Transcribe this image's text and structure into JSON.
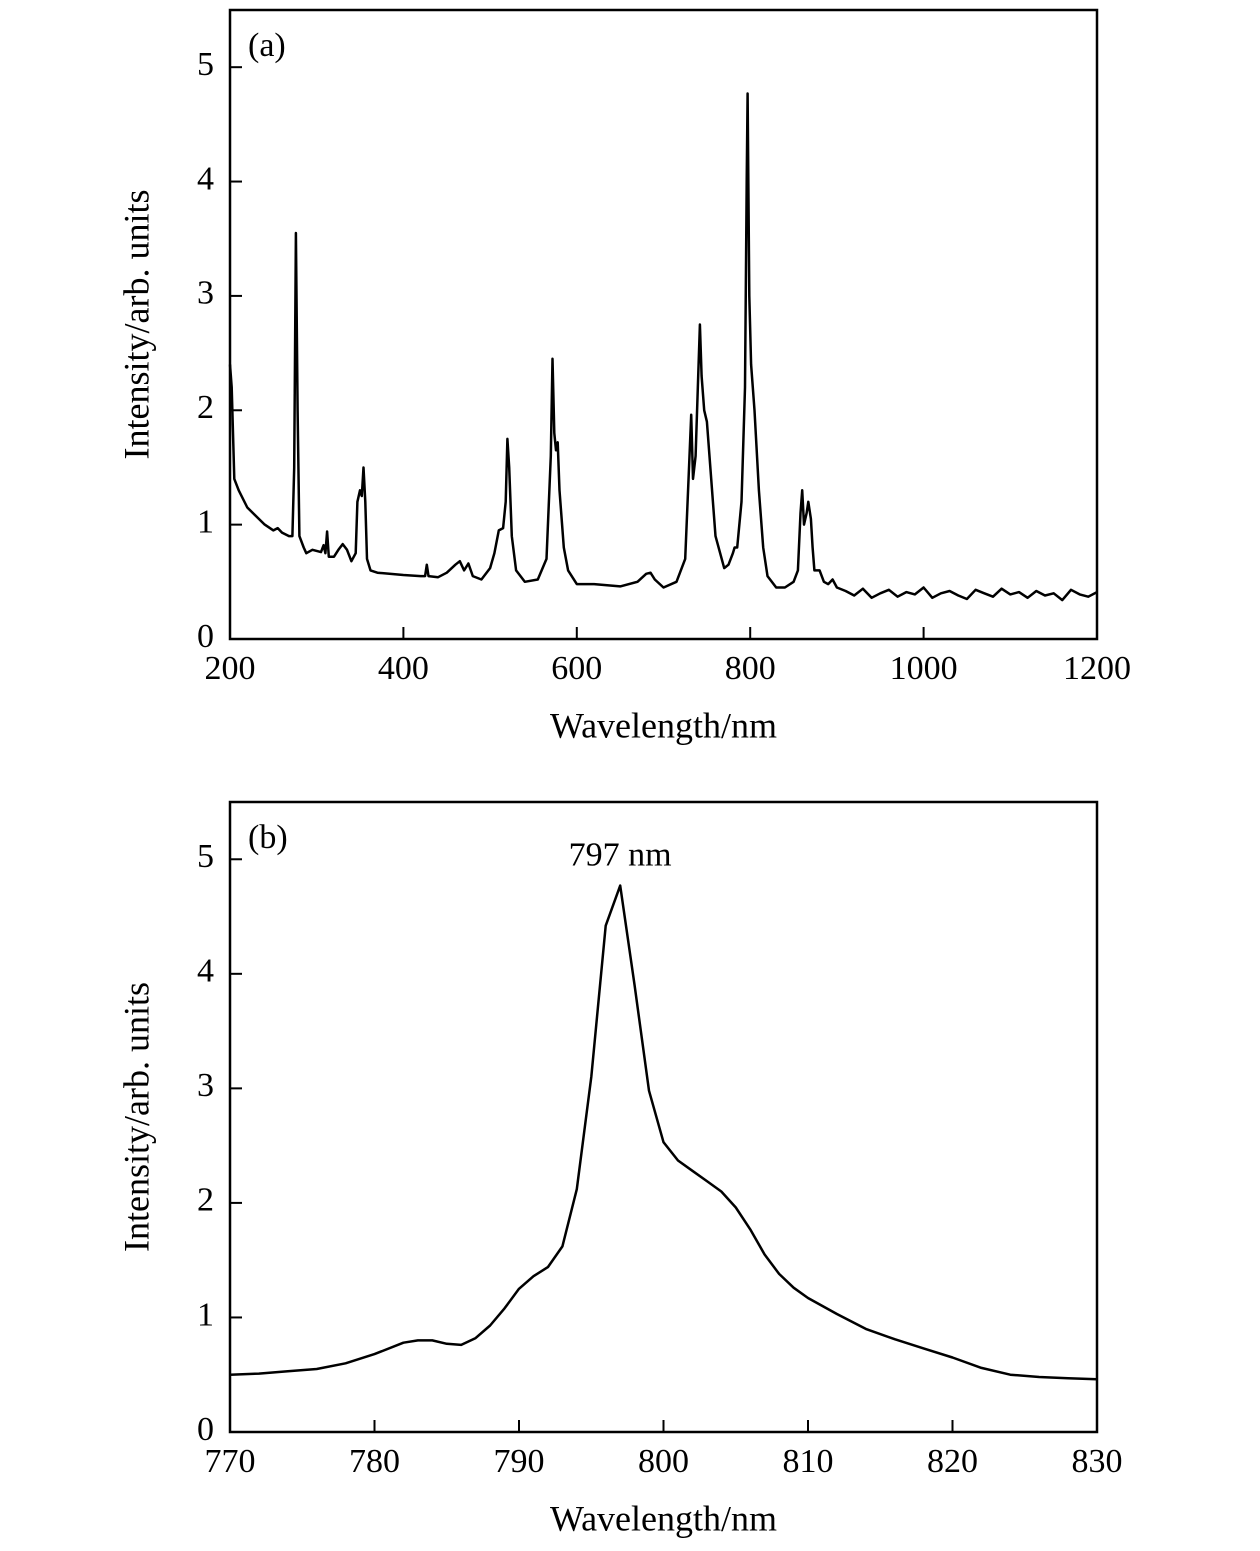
{
  "chart_data": [
    {
      "type": "line",
      "label": "(a)",
      "xlabel": "Wavelength/nm",
      "ylabel": "Intensity/arb. units",
      "x": [
        200,
        202,
        205,
        210,
        220,
        240,
        250,
        255,
        260,
        268,
        272,
        274,
        276,
        278,
        280,
        285,
        288,
        295,
        305,
        308,
        310,
        312,
        314,
        320,
        325,
        330,
        335,
        340,
        345,
        347,
        350,
        352,
        354,
        356,
        358,
        362,
        370,
        400,
        420,
        425,
        427,
        429,
        440,
        450,
        460,
        465,
        470,
        475,
        480,
        490,
        500,
        505,
        510,
        515,
        518,
        520,
        522,
        525,
        530,
        540,
        555,
        565,
        570,
        572,
        574,
        576,
        578,
        580,
        585,
        590,
        600,
        620,
        650,
        670,
        680,
        685,
        690,
        700,
        715,
        725,
        730,
        732,
        734,
        737,
        740,
        742,
        744,
        747,
        750,
        755,
        760,
        770,
        775,
        780,
        782,
        785,
        790,
        794,
        796,
        797,
        799,
        801,
        805,
        810,
        815,
        820,
        830,
        840,
        850,
        855,
        858,
        860,
        862,
        865,
        867,
        870,
        872,
        874,
        880,
        885,
        890,
        895,
        900,
        910,
        920,
        930,
        940,
        950,
        960,
        970,
        980,
        990,
        1000,
        1010,
        1020,
        1030,
        1040,
        1050,
        1060,
        1070,
        1080,
        1090,
        1100,
        1110,
        1120,
        1130,
        1140,
        1150,
        1160,
        1170,
        1180,
        1190,
        1200
      ],
      "values": [
        2.4,
        2.2,
        1.4,
        1.3,
        1.15,
        1.0,
        0.95,
        0.97,
        0.93,
        0.9,
        0.9,
        1.5,
        3.55,
        2.0,
        0.9,
        0.8,
        0.75,
        0.78,
        0.76,
        0.82,
        0.75,
        0.94,
        0.72,
        0.72,
        0.78,
        0.83,
        0.78,
        0.68,
        0.75,
        1.2,
        1.3,
        1.25,
        1.5,
        1.2,
        0.7,
        0.6,
        0.58,
        0.56,
        0.55,
        0.55,
        0.65,
        0.55,
        0.54,
        0.58,
        0.65,
        0.68,
        0.6,
        0.66,
        0.55,
        0.52,
        0.62,
        0.75,
        0.95,
        0.97,
        1.2,
        1.75,
        1.5,
        0.9,
        0.6,
        0.5,
        0.52,
        0.7,
        1.6,
        2.45,
        1.8,
        1.65,
        1.72,
        1.3,
        0.8,
        0.6,
        0.48,
        0.48,
        0.46,
        0.5,
        0.57,
        0.58,
        0.52,
        0.45,
        0.5,
        0.7,
        1.6,
        1.96,
        1.4,
        1.6,
        2.3,
        2.75,
        2.3,
        2.0,
        1.9,
        1.4,
        0.9,
        0.62,
        0.65,
        0.75,
        0.8,
        0.8,
        1.2,
        2.2,
        4.0,
        4.77,
        3.0,
        2.4,
        2.0,
        1.3,
        0.8,
        0.55,
        0.45,
        0.45,
        0.5,
        0.6,
        1.1,
        1.3,
        1.0,
        1.1,
        1.2,
        1.05,
        0.8,
        0.6,
        0.6,
        0.5,
        0.48,
        0.52,
        0.45,
        0.42,
        0.38,
        0.44,
        0.36,
        0.4,
        0.43,
        0.37,
        0.41,
        0.39,
        0.45,
        0.36,
        0.4,
        0.42,
        0.38,
        0.35,
        0.43,
        0.4,
        0.37,
        0.44,
        0.39,
        0.41,
        0.36,
        0.42,
        0.38,
        0.4,
        0.34,
        0.43,
        0.39,
        0.37,
        0.41
      ],
      "color": "#000000",
      "xlim": [
        200,
        1200
      ],
      "ylim": [
        0,
        5.5
      ],
      "xticks": [
        200,
        400,
        600,
        800,
        1000,
        1200
      ],
      "yticks": [
        0,
        1,
        2,
        3,
        4,
        5
      ]
    },
    {
      "type": "line",
      "label": "(b)",
      "annotation": "797 nm",
      "xlabel": "Wavelength/nm",
      "ylabel": "Intensity/arb. units",
      "x": [
        770,
        772,
        774,
        776,
        778,
        780,
        782,
        783,
        784,
        785,
        786,
        787,
        788,
        789,
        790,
        791,
        792,
        793,
        794,
        795,
        796,
        797,
        798,
        799,
        800,
        801,
        802,
        803,
        804,
        805,
        806,
        807,
        808,
        809,
        810,
        812,
        814,
        816,
        818,
        820,
        822,
        824,
        826,
        828,
        830
      ],
      "values": [
        0.5,
        0.51,
        0.53,
        0.55,
        0.6,
        0.68,
        0.78,
        0.8,
        0.8,
        0.77,
        0.76,
        0.82,
        0.93,
        1.08,
        1.25,
        1.36,
        1.44,
        1.62,
        2.12,
        3.1,
        4.42,
        4.77,
        3.9,
        2.98,
        2.53,
        2.37,
        2.28,
        2.19,
        2.1,
        1.96,
        1.77,
        1.55,
        1.38,
        1.26,
        1.17,
        1.03,
        0.9,
        0.81,
        0.73,
        0.65,
        0.56,
        0.5,
        0.48,
        0.47,
        0.46
      ],
      "color": "#000000",
      "xlim": [
        770,
        830
      ],
      "ylim": [
        0,
        5.5
      ],
      "xticks": [
        770,
        780,
        790,
        800,
        810,
        820,
        830
      ],
      "yticks": [
        0,
        1,
        2,
        3,
        4,
        5
      ]
    }
  ]
}
